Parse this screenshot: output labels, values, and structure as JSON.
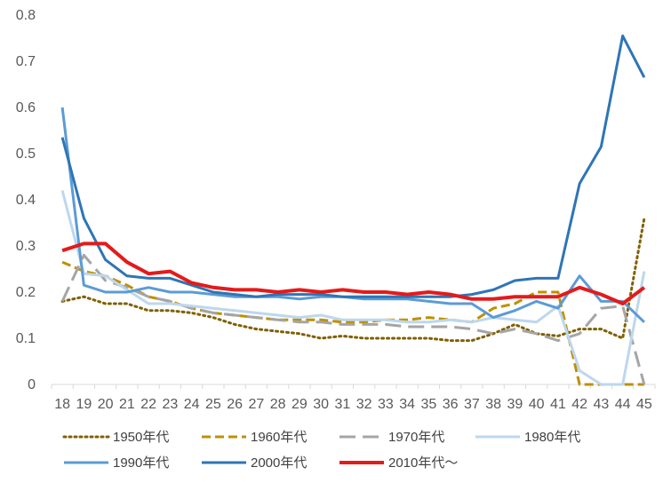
{
  "chart_data": {
    "type": "line",
    "title": "",
    "xlabel": "",
    "ylabel": "",
    "x": [
      18,
      19,
      20,
      21,
      22,
      23,
      24,
      25,
      26,
      27,
      28,
      29,
      30,
      31,
      32,
      33,
      34,
      35,
      36,
      37,
      38,
      39,
      40,
      41,
      42,
      43,
      44,
      45
    ],
    "ylim": [
      0,
      0.8
    ],
    "yticks": [
      0,
      0.1,
      0.2,
      0.3,
      0.4,
      0.5,
      0.6,
      0.7,
      0.8
    ],
    "ytick_labels": [
      "0",
      "0.1",
      "0.2",
      "0.3",
      "0.4",
      "0.5",
      "0.6",
      "0.7",
      "0.8"
    ],
    "grid": false,
    "legend_position": "bottom",
    "series": [
      {
        "name": "1950年代",
        "color": "#7f6000",
        "style": "dotted",
        "values": [
          0.18,
          0.19,
          0.175,
          0.175,
          0.16,
          0.16,
          0.155,
          0.145,
          0.13,
          0.12,
          0.115,
          0.11,
          0.1,
          0.105,
          0.1,
          0.1,
          0.1,
          0.1,
          0.095,
          0.095,
          0.11,
          0.13,
          0.11,
          0.105,
          0.12,
          0.12,
          0.1,
          0.36
        ]
      },
      {
        "name": "1960年代",
        "color": "#bf9000",
        "style": "dashed",
        "values": [
          0.265,
          0.245,
          0.235,
          0.215,
          0.19,
          0.18,
          0.165,
          0.155,
          0.15,
          0.145,
          0.14,
          0.14,
          0.14,
          0.135,
          0.135,
          0.14,
          0.14,
          0.145,
          0.14,
          0.135,
          0.165,
          0.175,
          0.2,
          0.2,
          0.0,
          0.0,
          0.0,
          0.0
        ]
      },
      {
        "name": "1970年代",
        "color": "#a5a5a5",
        "style": "longdash",
        "values": [
          0.18,
          0.28,
          0.225,
          0.21,
          0.19,
          0.18,
          0.165,
          0.155,
          0.15,
          0.145,
          0.14,
          0.135,
          0.135,
          0.13,
          0.13,
          0.13,
          0.125,
          0.125,
          0.125,
          0.12,
          0.11,
          0.12,
          0.11,
          0.095,
          0.11,
          0.165,
          0.17,
          0.0
        ]
      },
      {
        "name": "1980年代",
        "color": "#bdd7ee",
        "style": "solid",
        "values": [
          0.42,
          0.24,
          0.235,
          0.205,
          0.175,
          0.175,
          0.17,
          0.165,
          0.16,
          0.155,
          0.15,
          0.145,
          0.15,
          0.14,
          0.14,
          0.14,
          0.135,
          0.135,
          0.14,
          0.135,
          0.145,
          0.14,
          0.135,
          0.17,
          0.03,
          0.0,
          0.0,
          0.245
        ]
      },
      {
        "name": "1990年代",
        "color": "#5b9bd5",
        "style": "solid",
        "values": [
          0.6,
          0.215,
          0.2,
          0.2,
          0.21,
          0.2,
          0.2,
          0.195,
          0.19,
          0.19,
          0.19,
          0.185,
          0.19,
          0.19,
          0.185,
          0.185,
          0.185,
          0.18,
          0.175,
          0.175,
          0.145,
          0.16,
          0.18,
          0.165,
          0.235,
          0.18,
          0.18,
          0.135
        ]
      },
      {
        "name": "2000年代",
        "color": "#2e75b6",
        "style": "solid",
        "values": [
          0.535,
          0.36,
          0.27,
          0.235,
          0.23,
          0.23,
          0.215,
          0.2,
          0.195,
          0.19,
          0.195,
          0.195,
          0.195,
          0.19,
          0.19,
          0.19,
          0.19,
          0.19,
          0.19,
          0.195,
          0.205,
          0.225,
          0.23,
          0.23,
          0.435,
          0.515,
          0.755,
          0.665
        ]
      },
      {
        "name": "2010年代〜",
        "color": "#e31b1b",
        "style": "solid",
        "values": [
          0.29,
          0.305,
          0.305,
          0.265,
          0.24,
          0.245,
          0.22,
          0.21,
          0.205,
          0.205,
          0.2,
          0.205,
          0.2,
          0.205,
          0.2,
          0.2,
          0.195,
          0.2,
          0.195,
          0.185,
          0.185,
          0.19,
          0.19,
          0.19,
          0.21,
          0.195,
          0.175,
          0.21
        ]
      }
    ]
  }
}
